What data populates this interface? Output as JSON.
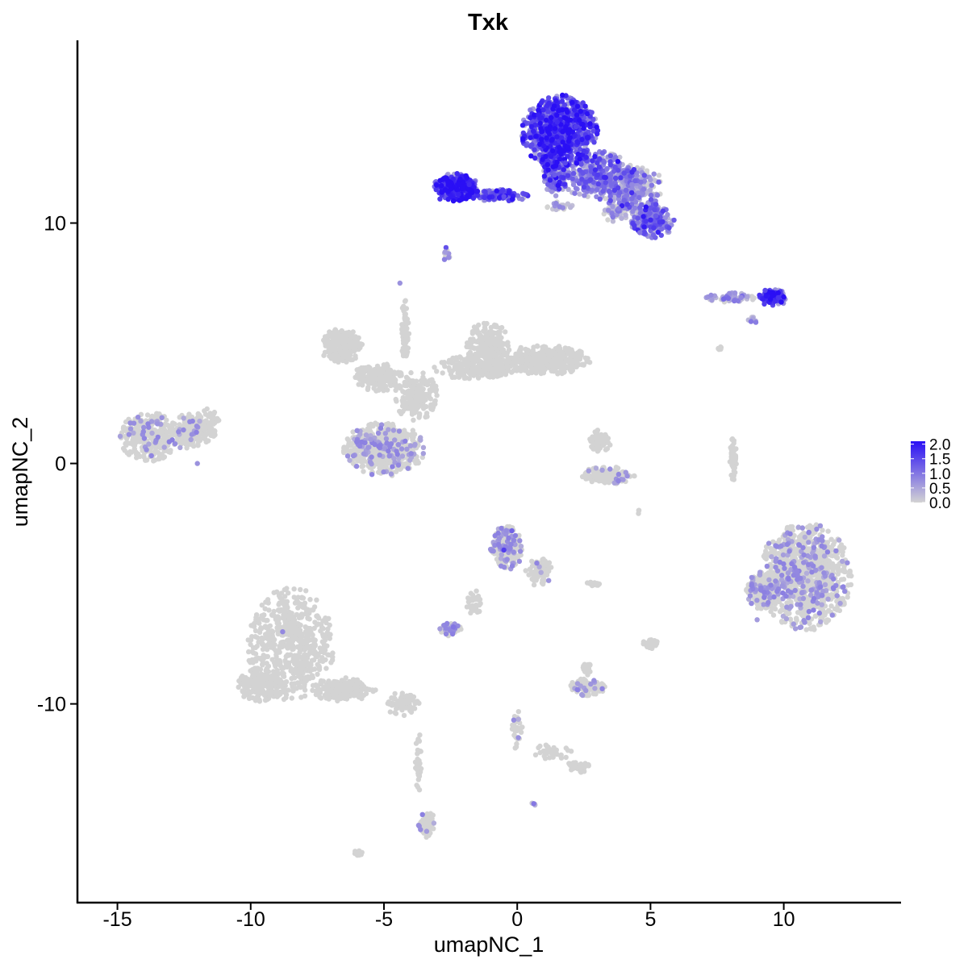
{
  "chart_data": {
    "type": "scatter",
    "title": "Txk",
    "xlabel": "umapNC_1",
    "ylabel": "umapNC_2",
    "xlim": [
      -16.5,
      14.4
    ],
    "ylim": [
      -18.3,
      17.6
    ],
    "xticks": [
      -15,
      -10,
      -5,
      0,
      5,
      10
    ],
    "xtick_labels": [
      "-15",
      "-10",
      "-5",
      "0",
      "5",
      "10"
    ],
    "yticks": [
      -10,
      0,
      10
    ],
    "ytick_labels": [
      "-10",
      "0",
      "10"
    ],
    "grid": false,
    "legend": {
      "position": "right",
      "type": "colorbar",
      "range": [
        0,
        2.1
      ],
      "ticks": [
        2.0,
        1.5,
        1.0,
        0.5,
        0.0
      ],
      "labels": [
        "2.0",
        "1.5",
        "1.0",
        "0.5",
        "0.0"
      ],
      "low_color": "#d3d3d3",
      "high_color": "#2a0ff5"
    },
    "series": [
      {
        "points": [
          {
            "x": 1.5,
            "y": 14.2,
            "v": 1.8
          },
          {
            "x": 0.8,
            "y": 14.5,
            "v": 1.9
          },
          {
            "x": 2.2,
            "y": 14.0,
            "v": 1.6
          },
          {
            "x": 1.0,
            "y": 13.2,
            "v": 2.0
          },
          {
            "x": 2.5,
            "y": 13.0,
            "v": 1.7
          },
          {
            "x": 1.8,
            "y": 12.5,
            "v": 1.5
          },
          {
            "x": 0.9,
            "y": 15.0,
            "v": 1.8
          },
          {
            "x": 2.8,
            "y": 14.6,
            "v": 1.4
          },
          {
            "x": 1.4,
            "y": 12.0,
            "v": 1.3
          },
          {
            "x": -2.6,
            "y": 11.7,
            "v": 2.1
          },
          {
            "x": -2.2,
            "y": 11.2,
            "v": 1.9
          },
          {
            "x": -1.8,
            "y": 11.6,
            "v": 1.8
          },
          {
            "x": -1.2,
            "y": 11.3,
            "v": 1.6
          },
          {
            "x": -0.5,
            "y": 11.1,
            "v": 1.4
          },
          {
            "x": 0.3,
            "y": 11.2,
            "v": 1.5
          },
          {
            "x": -2.9,
            "y": 11.0,
            "v": 1.7
          },
          {
            "x": 3.5,
            "y": 12.0,
            "v": 1.1
          },
          {
            "x": 4.3,
            "y": 11.6,
            "v": 0.8
          },
          {
            "x": 5.0,
            "y": 11.8,
            "v": 0.6
          },
          {
            "x": 3.8,
            "y": 10.6,
            "v": 0.9
          },
          {
            "x": 5.2,
            "y": 10.3,
            "v": 1.3
          },
          {
            "x": 5.7,
            "y": 9.8,
            "v": 1.5
          },
          {
            "x": 4.6,
            "y": 9.6,
            "v": 1.0
          },
          {
            "x": 9.8,
            "y": 6.9,
            "v": 1.7
          },
          {
            "x": 9.3,
            "y": 7.2,
            "v": 1.5
          },
          {
            "x": 8.4,
            "y": 6.9,
            "v": 0.8
          },
          {
            "x": 7.3,
            "y": 6.8,
            "v": 0.6
          },
          {
            "x": -2.7,
            "y": 8.8,
            "v": 0.6
          },
          {
            "x": -4.4,
            "y": 7.5,
            "v": 0.7
          },
          {
            "x": -0.5,
            "y": -3.6,
            "v": 1.6
          },
          {
            "x": -0.2,
            "y": -2.8,
            "v": 1.2
          },
          {
            "x": -2.4,
            "y": -6.8,
            "v": 1.0
          },
          {
            "x": -8.8,
            "y": -7.0,
            "v": 0.8
          },
          {
            "x": -12.0,
            "y": 0.0,
            "v": 0.7
          },
          {
            "x": -5.5,
            "y": 1.0,
            "v": 0.6
          },
          {
            "x": 10.5,
            "y": -4.5,
            "v": 0.8
          },
          {
            "x": 12.0,
            "y": -5.5,
            "v": 0.7
          },
          {
            "x": 9.0,
            "y": -6.5,
            "v": 0.6
          },
          {
            "x": -3.4,
            "y": -15.3,
            "v": 0.6
          }
        ],
        "clusters": [
          {
            "cx": 1.6,
            "cy": 13.8,
            "rx": 1.4,
            "ry": 1.5,
            "n": 900,
            "level": 1.45
          },
          {
            "cx": 3.0,
            "cy": 12.0,
            "rx": 1.4,
            "ry": 1.0,
            "n": 350,
            "level": 0.85
          },
          {
            "cx": 4.2,
            "cy": 11.5,
            "rx": 1.3,
            "ry": 0.9,
            "n": 300,
            "level": 0.6
          },
          {
            "cx": 5.0,
            "cy": 10.1,
            "rx": 0.9,
            "ry": 0.7,
            "n": 200,
            "level": 1.0
          },
          {
            "cx": 1.4,
            "cy": 12.0,
            "rx": 0.5,
            "ry": 0.9,
            "n": 120,
            "level": 1.1
          },
          {
            "cx": -2.3,
            "cy": 11.5,
            "rx": 0.8,
            "ry": 0.6,
            "n": 320,
            "level": 1.7
          },
          {
            "cx": -0.7,
            "cy": 11.15,
            "rx": 1.1,
            "ry": 0.25,
            "n": 130,
            "level": 1.3
          },
          {
            "cx": 3.8,
            "cy": 10.5,
            "rx": 0.6,
            "ry": 0.5,
            "n": 60,
            "level": 0.3
          },
          {
            "cx": 1.6,
            "cy": 10.7,
            "rx": 0.5,
            "ry": 0.2,
            "n": 30,
            "level": 0.2
          },
          {
            "cx": 9.6,
            "cy": 6.9,
            "rx": 0.55,
            "ry": 0.35,
            "n": 110,
            "level": 1.5
          },
          {
            "cx": 8.0,
            "cy": 6.9,
            "rx": 0.9,
            "ry": 0.2,
            "n": 50,
            "level": 0.55
          },
          {
            "cx": 8.8,
            "cy": 6.0,
            "rx": 0.2,
            "ry": 0.2,
            "n": 10,
            "level": 0.6
          },
          {
            "cx": -2.7,
            "cy": 8.7,
            "rx": 0.2,
            "ry": 0.35,
            "n": 12,
            "level": 0.3
          },
          {
            "cx": -6.6,
            "cy": 4.9,
            "rx": 0.8,
            "ry": 0.7,
            "n": 200,
            "level": 0.0
          },
          {
            "cx": -5.2,
            "cy": 3.6,
            "rx": 0.9,
            "ry": 0.6,
            "n": 180,
            "level": 0.0
          },
          {
            "cx": -3.8,
            "cy": 2.8,
            "rx": 0.8,
            "ry": 1.0,
            "n": 200,
            "level": 0.0
          },
          {
            "cx": -5.0,
            "cy": 0.6,
            "rx": 1.5,
            "ry": 1.1,
            "n": 550,
            "level": 0.05
          },
          {
            "cx": -1.1,
            "cy": 4.8,
            "rx": 0.8,
            "ry": 1.1,
            "n": 260,
            "level": 0.0
          },
          {
            "cx": 1.0,
            "cy": 4.3,
            "rx": 1.7,
            "ry": 0.6,
            "n": 400,
            "level": 0.0
          },
          {
            "cx": -1.6,
            "cy": 4.0,
            "rx": 1.5,
            "ry": 0.5,
            "n": 200,
            "level": 0.0
          },
          {
            "cx": -4.2,
            "cy": 5.5,
            "rx": 0.15,
            "ry": 1.5,
            "n": 60,
            "level": 0.0
          },
          {
            "cx": -13.8,
            "cy": 1.1,
            "rx": 1.1,
            "ry": 1.0,
            "n": 300,
            "level": 0.03
          },
          {
            "cx": -12.4,
            "cy": 1.3,
            "rx": 0.6,
            "ry": 0.8,
            "n": 140,
            "level": 0.03
          },
          {
            "cx": -11.7,
            "cy": 1.6,
            "rx": 0.6,
            "ry": 0.7,
            "n": 100,
            "level": 0.0
          },
          {
            "cx": -8.5,
            "cy": -7.5,
            "rx": 1.6,
            "ry": 2.3,
            "n": 600,
            "level": 0.0
          },
          {
            "cx": -9.6,
            "cy": -9.2,
            "rx": 0.9,
            "ry": 0.7,
            "n": 200,
            "level": 0.0
          },
          {
            "cx": -6.5,
            "cy": -9.4,
            "rx": 1.2,
            "ry": 0.5,
            "n": 200,
            "level": 0.0
          },
          {
            "cx": -4.3,
            "cy": -10.0,
            "rx": 0.6,
            "ry": 0.5,
            "n": 80,
            "level": 0.0
          },
          {
            "cx": -3.7,
            "cy": -12.4,
            "rx": 0.12,
            "ry": 1.2,
            "n": 35,
            "level": 0.0
          },
          {
            "cx": -3.4,
            "cy": -15.0,
            "rx": 0.3,
            "ry": 0.6,
            "n": 60,
            "level": 0.05
          },
          {
            "cx": 10.8,
            "cy": -4.7,
            "rx": 1.7,
            "ry": 2.2,
            "n": 1000,
            "level": 0.06
          },
          {
            "cx": 9.2,
            "cy": -5.3,
            "rx": 0.6,
            "ry": 0.8,
            "n": 200,
            "level": 0.06
          },
          {
            "cx": 8.1,
            "cy": 0.2,
            "rx": 0.12,
            "ry": 0.9,
            "n": 60,
            "level": 0.0
          },
          {
            "cx": 3.1,
            "cy": 0.9,
            "rx": 0.4,
            "ry": 0.5,
            "n": 80,
            "level": 0.0
          },
          {
            "cx": 3.4,
            "cy": -0.5,
            "rx": 1.0,
            "ry": 0.35,
            "n": 140,
            "level": 0.03
          },
          {
            "cx": -0.4,
            "cy": -3.5,
            "rx": 0.6,
            "ry": 0.9,
            "n": 220,
            "level": 0.08
          },
          {
            "cx": 0.8,
            "cy": -4.5,
            "rx": 0.5,
            "ry": 0.6,
            "n": 80,
            "level": 0.03
          },
          {
            "cx": -1.6,
            "cy": -5.8,
            "rx": 0.3,
            "ry": 0.5,
            "n": 30,
            "level": 0.0
          },
          {
            "cx": -2.5,
            "cy": -6.9,
            "rx": 0.4,
            "ry": 0.3,
            "n": 60,
            "level": 0.1
          },
          {
            "cx": 2.6,
            "cy": -9.3,
            "rx": 0.7,
            "ry": 0.35,
            "n": 110,
            "level": 0.05
          },
          {
            "cx": 2.6,
            "cy": -8.5,
            "rx": 0.25,
            "ry": 0.3,
            "n": 20,
            "level": 0.0
          },
          {
            "cx": 5.0,
            "cy": -7.5,
            "rx": 0.3,
            "ry": 0.2,
            "n": 30,
            "level": 0.0
          },
          {
            "cx": 2.8,
            "cy": -5.0,
            "rx": 0.3,
            "ry": 0.1,
            "n": 15,
            "level": 0.0
          },
          {
            "cx": 0.0,
            "cy": -11.2,
            "rx": 0.2,
            "ry": 0.9,
            "n": 30,
            "level": 0.05
          },
          {
            "cx": 1.3,
            "cy": -12.0,
            "rx": 0.8,
            "ry": 0.3,
            "n": 35,
            "level": 0.0
          },
          {
            "cx": 2.3,
            "cy": -12.6,
            "rx": 0.4,
            "ry": 0.25,
            "n": 40,
            "level": 0.0
          },
          {
            "cx": -6.0,
            "cy": -16.2,
            "rx": 0.2,
            "ry": 0.1,
            "n": 10,
            "level": 0.0
          },
          {
            "cx": 0.6,
            "cy": -14.2,
            "rx": 0.12,
            "ry": 0.1,
            "n": 5,
            "level": 0.3
          },
          {
            "cx": 7.6,
            "cy": 4.8,
            "rx": 0.2,
            "ry": 0.15,
            "n": 6,
            "level": 0.0
          },
          {
            "cx": 4.6,
            "cy": -2.0,
            "rx": 0.1,
            "ry": 0.1,
            "n": 3,
            "level": 0.0
          }
        ]
      }
    ]
  }
}
